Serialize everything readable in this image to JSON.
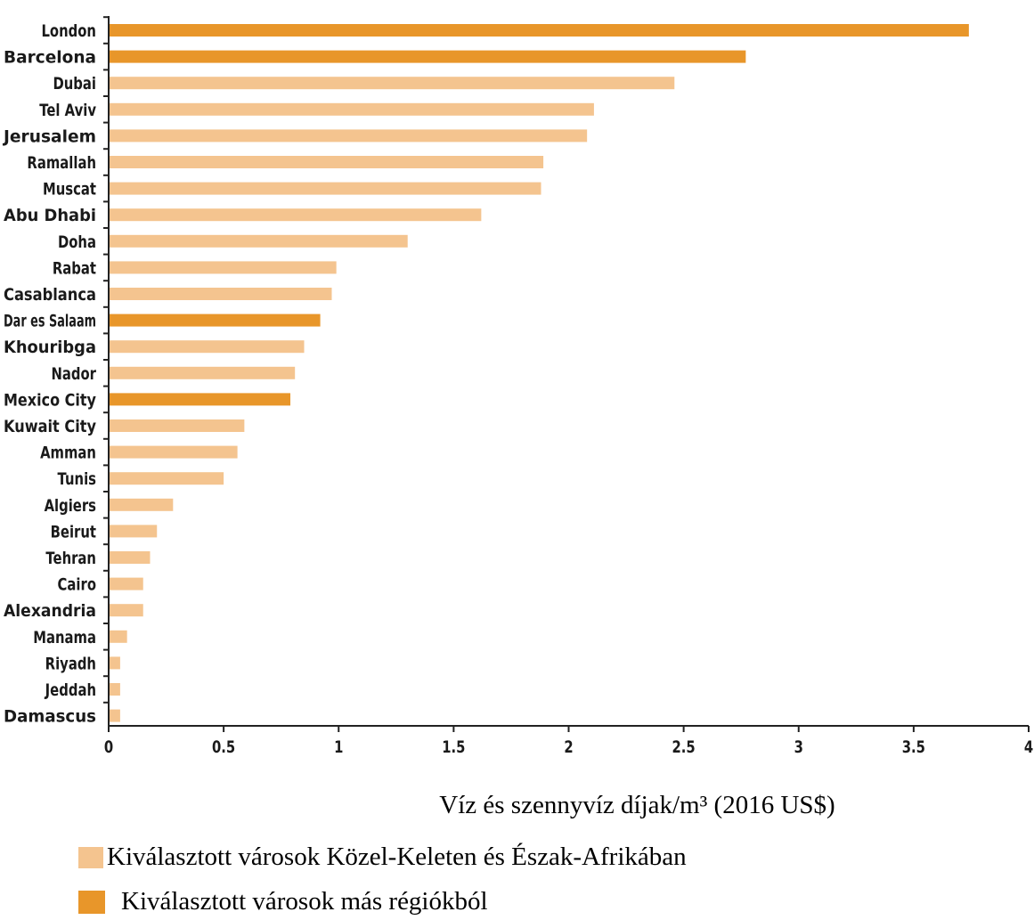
{
  "chart_data": {
    "type": "bar",
    "orientation": "horizontal",
    "categories": [
      "London",
      "Barcelona",
      "Dubai",
      "Tel Aviv",
      "Jerusalem",
      "Ramallah",
      "Muscat",
      "Abu Dhabi",
      "Doha",
      "Rabat",
      "Casablanca",
      "Dar es Salaam",
      "Khouribga",
      "Nador",
      "Mexico City",
      "Kuwait City",
      "Amman",
      "Tunis",
      "Algiers",
      "Beirut",
      "Tehran",
      "Cairo",
      "Alexandria",
      "Manama",
      "Riyadh",
      "Jeddah",
      "Damascus"
    ],
    "values": [
      3.74,
      2.77,
      2.46,
      2.11,
      2.08,
      1.89,
      1.88,
      1.62,
      1.3,
      0.99,
      0.97,
      0.92,
      0.85,
      0.81,
      0.79,
      0.59,
      0.56,
      0.5,
      0.28,
      0.21,
      0.18,
      0.15,
      0.15,
      0.08,
      0.05,
      0.05,
      0.05
    ],
    "group": [
      "other",
      "other",
      "mena",
      "mena",
      "mena",
      "mena",
      "mena",
      "mena",
      "mena",
      "mena",
      "mena",
      "other",
      "mena",
      "mena",
      "other",
      "mena",
      "mena",
      "mena",
      "mena",
      "mena",
      "mena",
      "mena",
      "mena",
      "mena",
      "mena",
      "mena",
      "mena"
    ],
    "xlabel": "Víz és szennyvíz díjak/m³ (2016 US$)",
    "ylabel": "",
    "xlim": [
      0,
      4
    ],
    "xticks": [
      "0",
      "0.5",
      "1",
      "1.5",
      "2",
      "2.5",
      "3",
      "3.5",
      "4"
    ],
    "grid": false,
    "colors": {
      "mena": "#f4c48f",
      "other": "#e8962a"
    },
    "legend": [
      {
        "key": "mena",
        "label": "Kiválasztott városok Közel-Keleten és Észak-Afrikában"
      },
      {
        "key": "other",
        "label": "Kiválasztott városok más régiókból"
      }
    ],
    "legend_position": "bottom-left"
  }
}
